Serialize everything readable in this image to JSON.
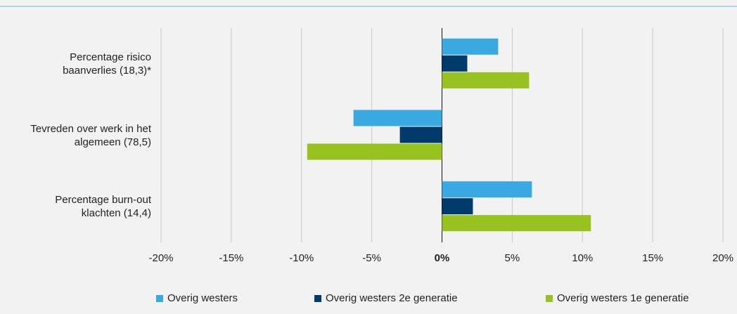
{
  "chart_data": {
    "type": "hbar",
    "categories": [
      "Percentage risico baanverlies (18,3)*",
      "Tevreden over werk in het algemeen (78,5)",
      "Percentage burn-out klachten (14,4)"
    ],
    "series": [
      {
        "name": "Overig westers",
        "color": "#3aa9e1",
        "values": [
          4.0,
          -6.3,
          6.4
        ]
      },
      {
        "name": "Overig westers 2e generatie",
        "color": "#003b6c",
        "values": [
          1.8,
          -3.0,
          2.2
        ]
      },
      {
        "name": "Overig westers 1e generatie",
        "color": "#97c21f",
        "values": [
          6.2,
          -9.6,
          10.6
        ]
      }
    ],
    "xlim": [
      -20,
      20
    ],
    "xticks": [
      {
        "value": -20,
        "label": "-20%"
      },
      {
        "value": -15,
        "label": "-15%"
      },
      {
        "value": -10,
        "label": "-10%"
      },
      {
        "value": -5,
        "label": "-5%"
      },
      {
        "value": 0,
        "label": "0%"
      },
      {
        "value": 5,
        "label": "5%"
      },
      {
        "value": 10,
        "label": "10%"
      },
      {
        "value": 15,
        "label": "15%"
      },
      {
        "value": 20,
        "label": "20%"
      }
    ],
    "grid": true,
    "legend": "bottom"
  }
}
